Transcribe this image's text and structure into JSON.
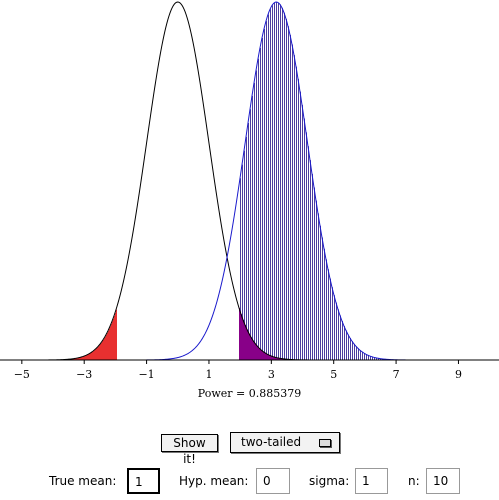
{
  "chart_data": {
    "type": "line",
    "x_ticks": [
      -5,
      -3,
      -1,
      1,
      3,
      5,
      7,
      9
    ],
    "xlim": [
      -5.7,
      10.3
    ],
    "null_mean": 0,
    "alt_mean": 3.16,
    "sd": 1,
    "critical_value": 1.96,
    "null_color": "#000000",
    "alt_color": "#1a1acc",
    "rejection_fill_color": "#e83030",
    "alt_fill_color": "#4b3c9e",
    "overlap_fill_color": "#880088"
  },
  "power_text": "Power = 0.885379",
  "controls": {
    "show_label": "Show it!",
    "tail_value": "two-tailed",
    "true_mean_label": "True mean:",
    "true_mean_value": "1",
    "hyp_mean_label": "Hyp. mean:",
    "hyp_mean_value": "0",
    "sigma_label": "sigma:",
    "sigma_value": "1",
    "n_label": "n:",
    "n_value": "10"
  }
}
